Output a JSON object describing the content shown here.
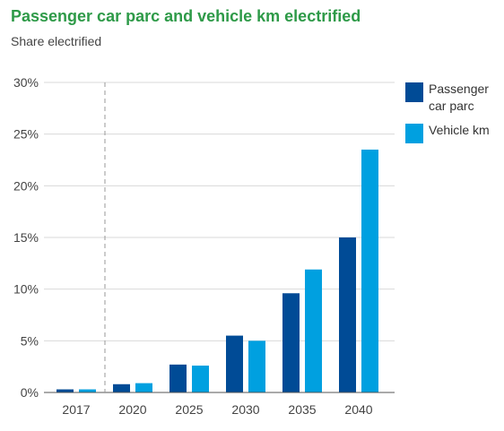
{
  "chart_data": {
    "type": "bar",
    "title": "Passenger car parc and vehicle km electrified",
    "subtitle": "Share electrified",
    "xlabel": "",
    "ylabel": "",
    "categories": [
      "2017",
      "2020",
      "2025",
      "2030",
      "2035",
      "2040"
    ],
    "series": [
      {
        "name": "Passenger car parc",
        "color": "#004b96",
        "values": [
          0.3,
          0.8,
          2.7,
          5.5,
          9.6,
          15.0
        ]
      },
      {
        "name": "Vehicle km",
        "color": "#00a0e0",
        "values": [
          0.3,
          0.9,
          2.6,
          5.0,
          11.9,
          23.5
        ]
      }
    ],
    "ylim": [
      0,
      30
    ],
    "yticks": [
      "0%",
      "5%",
      "10%",
      "15%",
      "20%",
      "25%",
      "30%"
    ],
    "grid": true,
    "legend_position": "right",
    "reference_line": "dashed vertical divider between 2017 and 2020"
  }
}
